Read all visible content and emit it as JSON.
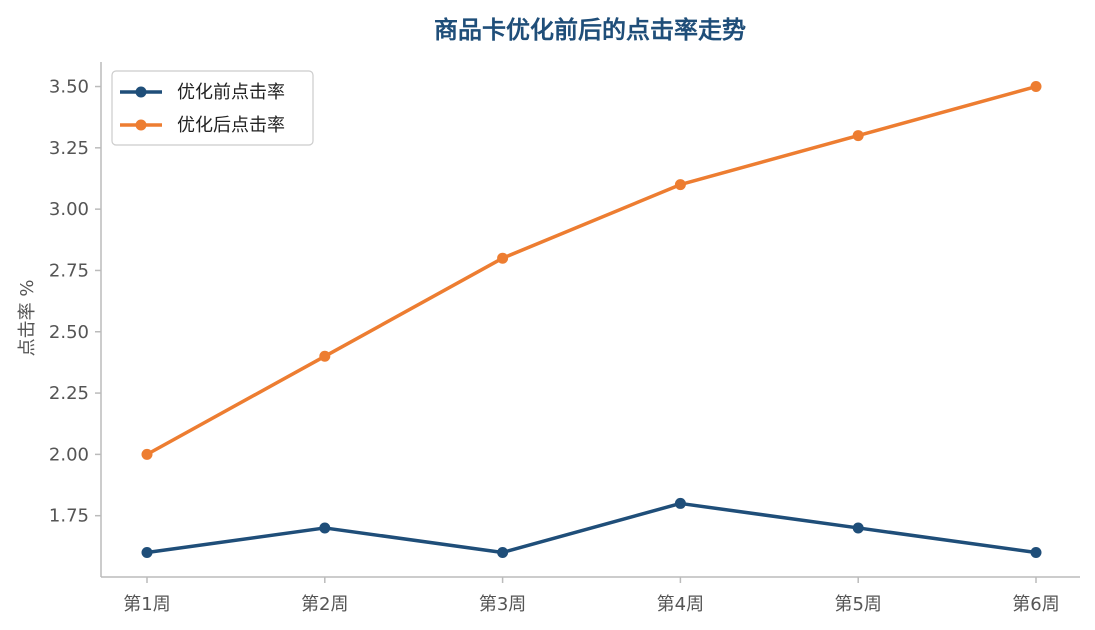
{
  "chart_data": {
    "type": "line",
    "title": "商品卡优化前后的点击率走势",
    "xlabel": "",
    "ylabel": "点击率 %",
    "categories": [
      "第1周",
      "第2周",
      "第3周",
      "第4周",
      "第5周",
      "第6周"
    ],
    "series": [
      {
        "name": "优化前点击率",
        "values": [
          1.6,
          1.7,
          1.6,
          1.8,
          1.7,
          1.6
        ],
        "color": "#1f4e79"
      },
      {
        "name": "优化后点击率",
        "values": [
          2.0,
          2.4,
          2.8,
          3.1,
          3.3,
          3.5
        ],
        "color": "#ed7d31"
      }
    ],
    "ylim": [
      1.5,
      3.6
    ],
    "yticks": [
      "1.75",
      "2.00",
      "2.25",
      "2.50",
      "2.75",
      "3.00",
      "3.25",
      "3.50"
    ],
    "grid": false,
    "legend": "top-left",
    "axis_color": "#bbbbbb"
  }
}
